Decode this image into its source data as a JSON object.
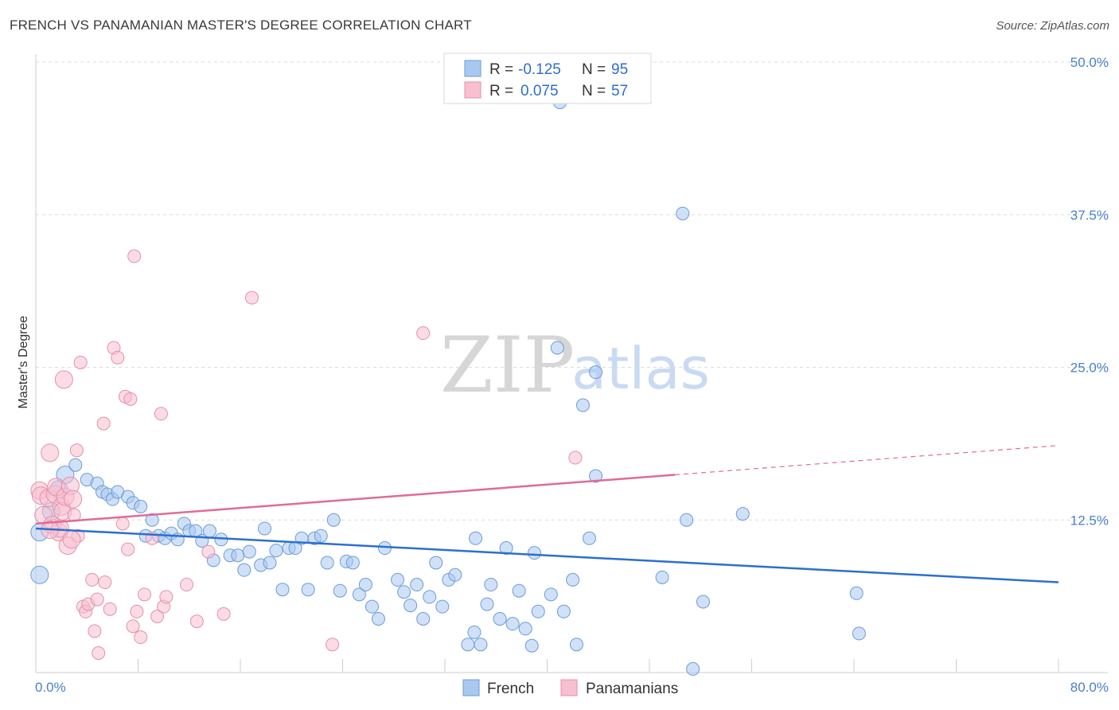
{
  "header": {
    "title": "FRENCH VS PANAMANIAN MASTER'S DEGREE CORRELATION CHART",
    "source": "Source: ZipAtlas.com"
  },
  "colors": {
    "french_fill": "#a9c8f0",
    "french_stroke": "#6a9bd8",
    "french_line": "#2b6fd1",
    "panamanian_fill": "#f7bfd0",
    "panamanian_stroke": "#e58fab",
    "panamanian_line": "#e06b98",
    "tick_text": "#4a80c8",
    "grid": "#dcdcdc"
  },
  "legend": {
    "rows": [
      {
        "r_label": "R =",
        "r_value": "-0.125",
        "n_label": "N =",
        "n_value": "95"
      },
      {
        "r_label": "R =",
        "r_value": "0.075",
        "n_label": "N =",
        "n_value": "57"
      }
    ]
  },
  "watermark": {
    "zip": "ZIP",
    "atlas": "atlas"
  },
  "chart_data": {
    "type": "scatter",
    "xlabel": "",
    "ylabel": "Master's Degree",
    "xlim": [
      0,
      80
    ],
    "ylim": [
      0,
      50
    ],
    "x_ticks_labels": [
      "0.0%",
      "80.0%"
    ],
    "y_ticks": [
      12.5,
      25.0,
      37.5,
      50.0
    ],
    "y_ticks_labels": [
      "12.5%",
      "25.0%",
      "37.5%",
      "50.0%"
    ],
    "grid": true,
    "legend_position": "top-center",
    "series": [
      {
        "name": "French",
        "trend": {
          "x0": 0,
          "y0": 11.8,
          "x1": 80,
          "y1": 7.4
        },
        "points": [
          [
            0.3,
            11.5
          ],
          [
            0.3,
            8.0
          ],
          [
            1.2,
            13.2
          ],
          [
            1.8,
            15.0
          ],
          [
            2.3,
            16.2
          ],
          [
            3.1,
            17.0
          ],
          [
            4.0,
            15.8
          ],
          [
            4.8,
            15.5
          ],
          [
            5.2,
            14.8
          ],
          [
            5.6,
            14.6
          ],
          [
            6.0,
            14.2
          ],
          [
            6.4,
            14.8
          ],
          [
            7.2,
            14.4
          ],
          [
            7.6,
            13.9
          ],
          [
            8.2,
            13.6
          ],
          [
            8.6,
            11.2
          ],
          [
            9.1,
            12.5
          ],
          [
            9.6,
            11.2
          ],
          [
            10.1,
            11.0
          ],
          [
            10.6,
            11.4
          ],
          [
            11.1,
            10.9
          ],
          [
            11.6,
            12.2
          ],
          [
            12.0,
            11.6
          ],
          [
            12.5,
            11.6
          ],
          [
            13.0,
            10.8
          ],
          [
            13.6,
            11.6
          ],
          [
            13.9,
            9.2
          ],
          [
            14.5,
            10.9
          ],
          [
            15.2,
            9.6
          ],
          [
            15.8,
            9.6
          ],
          [
            16.3,
            8.4
          ],
          [
            16.7,
            9.9
          ],
          [
            17.6,
            8.8
          ],
          [
            17.9,
            11.8
          ],
          [
            18.3,
            9.0
          ],
          [
            18.8,
            10.0
          ],
          [
            19.3,
            6.8
          ],
          [
            19.8,
            10.2
          ],
          [
            20.3,
            10.2
          ],
          [
            20.8,
            11.0
          ],
          [
            21.3,
            6.8
          ],
          [
            21.8,
            11.0
          ],
          [
            22.3,
            11.2
          ],
          [
            22.8,
            9.0
          ],
          [
            23.3,
            12.5
          ],
          [
            23.8,
            6.7
          ],
          [
            24.3,
            9.1
          ],
          [
            24.8,
            9.0
          ],
          [
            25.3,
            6.4
          ],
          [
            25.8,
            7.2
          ],
          [
            26.3,
            5.4
          ],
          [
            26.8,
            4.4
          ],
          [
            27.3,
            10.2
          ],
          [
            28.3,
            7.6
          ],
          [
            28.8,
            6.6
          ],
          [
            29.3,
            5.5
          ],
          [
            29.8,
            7.2
          ],
          [
            30.3,
            4.4
          ],
          [
            30.8,
            6.2
          ],
          [
            31.3,
            9.0
          ],
          [
            31.8,
            5.4
          ],
          [
            32.3,
            7.6
          ],
          [
            32.8,
            8.0
          ],
          [
            33.8,
            2.3
          ],
          [
            34.3,
            3.3
          ],
          [
            34.4,
            11.0
          ],
          [
            34.8,
            2.3
          ],
          [
            35.3,
            5.6
          ],
          [
            35.6,
            7.2
          ],
          [
            36.3,
            4.4
          ],
          [
            36.8,
            10.2
          ],
          [
            37.3,
            4.0
          ],
          [
            37.8,
            6.7
          ],
          [
            38.3,
            3.6
          ],
          [
            38.8,
            2.2
          ],
          [
            39.0,
            9.8
          ],
          [
            39.3,
            5.0
          ],
          [
            40.3,
            6.4
          ],
          [
            40.8,
            26.6
          ],
          [
            41.0,
            46.7
          ],
          [
            41.3,
            5.0
          ],
          [
            42.0,
            7.6
          ],
          [
            42.3,
            2.3
          ],
          [
            42.8,
            21.9
          ],
          [
            43.3,
            11.0
          ],
          [
            43.8,
            24.6
          ],
          [
            43.8,
            16.1
          ],
          [
            49.0,
            7.8
          ],
          [
            50.6,
            37.6
          ],
          [
            50.9,
            12.5
          ],
          [
            52.2,
            5.8
          ],
          [
            51.4,
            0.3
          ],
          [
            55.3,
            13.0
          ],
          [
            64.2,
            6.5
          ],
          [
            64.4,
            3.2
          ]
        ]
      },
      {
        "name": "Panamanians",
        "trend": {
          "x0": 0,
          "y0": 12.2,
          "x1": 50,
          "y1": 16.2,
          "dash_x1": 80,
          "dash_y1": 18.6
        },
        "points": [
          [
            0.3,
            14.9
          ],
          [
            0.4,
            14.5
          ],
          [
            0.6,
            12.9
          ],
          [
            1.0,
            14.3
          ],
          [
            1.1,
            18.0
          ],
          [
            1.3,
            12.1
          ],
          [
            1.5,
            14.6
          ],
          [
            1.6,
            15.2
          ],
          [
            1.8,
            11.5
          ],
          [
            1.9,
            11.8
          ],
          [
            2.0,
            13.6
          ],
          [
            2.1,
            13.2
          ],
          [
            2.3,
            14.4
          ],
          [
            2.5,
            10.4
          ],
          [
            2.7,
            15.3
          ],
          [
            2.9,
            14.2
          ],
          [
            3.0,
            12.9
          ],
          [
            3.2,
            18.2
          ],
          [
            3.3,
            11.2
          ],
          [
            3.5,
            25.4
          ],
          [
            3.7,
            5.4
          ],
          [
            3.9,
            5.0
          ],
          [
            4.1,
            5.6
          ],
          [
            4.4,
            7.6
          ],
          [
            4.6,
            3.4
          ],
          [
            4.8,
            6.0
          ],
          [
            4.9,
            1.6
          ],
          [
            5.3,
            20.4
          ],
          [
            5.4,
            7.4
          ],
          [
            5.8,
            5.2
          ],
          [
            6.1,
            26.6
          ],
          [
            6.4,
            25.8
          ],
          [
            6.8,
            12.2
          ],
          [
            7.0,
            22.6
          ],
          [
            7.2,
            10.1
          ],
          [
            7.4,
            22.4
          ],
          [
            7.6,
            3.8
          ],
          [
            7.7,
            34.1
          ],
          [
            7.9,
            5.0
          ],
          [
            8.2,
            2.9
          ],
          [
            8.5,
            6.4
          ],
          [
            9.1,
            11.0
          ],
          [
            9.5,
            4.6
          ],
          [
            9.8,
            21.2
          ],
          [
            10.0,
            5.4
          ],
          [
            10.2,
            6.2
          ],
          [
            11.8,
            7.2
          ],
          [
            12.6,
            4.2
          ],
          [
            13.5,
            9.9
          ],
          [
            14.7,
            4.8
          ],
          [
            16.9,
            30.7
          ],
          [
            23.2,
            2.3
          ],
          [
            30.3,
            27.8
          ],
          [
            42.2,
            17.6
          ],
          [
            2.2,
            24.0
          ],
          [
            1.1,
            11.7
          ],
          [
            2.8,
            10.9
          ]
        ]
      }
    ]
  }
}
